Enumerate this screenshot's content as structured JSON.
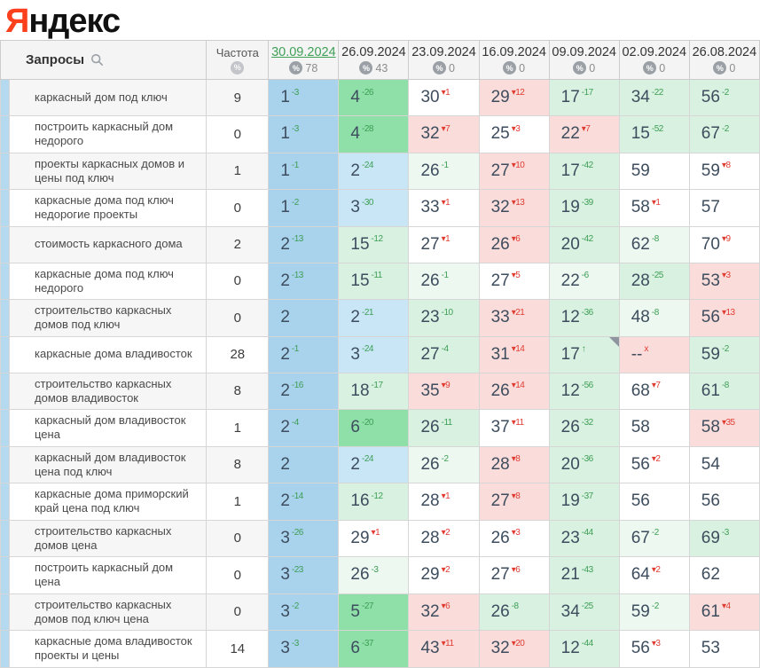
{
  "logo": {
    "first_letter": "Я",
    "rest": "ндекс"
  },
  "palette": {
    "sel": "#a9d2ed",
    "blue": "#c9e6f7",
    "green": "#8edfa8",
    "lgreen": "#d9f1e1",
    "pgreen": "#ecf8f0",
    "pink": "#fadcda",
    "white": "#ffffff",
    "sup_up": "#3c9e53",
    "sup_down": "#e03c31",
    "selected_date": "#3fa057",
    "logo_accent": "#fc3f1d"
  },
  "table": {
    "queries_header": "Запросы",
    "frequency_header": "Частота",
    "columns": [
      {
        "date": "30.09.2024",
        "percent": "78",
        "selected": true
      },
      {
        "date": "26.09.2024",
        "percent": "43",
        "selected": false
      },
      {
        "date": "23.09.2024",
        "percent": "0",
        "selected": false
      },
      {
        "date": "16.09.2024",
        "percent": "0",
        "selected": false
      },
      {
        "date": "09.09.2024",
        "percent": "0",
        "selected": false
      },
      {
        "date": "02.09.2024",
        "percent": "0",
        "selected": false
      },
      {
        "date": "26.08.2024",
        "percent": "0",
        "selected": false
      }
    ],
    "rows": [
      {
        "query": "каркасный дом под ключ",
        "freq": "9",
        "cells": [
          {
            "p": "1",
            "s": "-3",
            "sc": "up",
            "bg": "sel"
          },
          {
            "p": "4",
            "s": "-26",
            "sc": "up",
            "bg": "green"
          },
          {
            "p": "30",
            "s": "▾1",
            "sc": "down",
            "bg": "white"
          },
          {
            "p": "29",
            "s": "▾12",
            "sc": "down",
            "bg": "pink"
          },
          {
            "p": "17",
            "s": "-17",
            "sc": "up",
            "bg": "lgreen"
          },
          {
            "p": "34",
            "s": "-22",
            "sc": "up",
            "bg": "lgreen"
          },
          {
            "p": "56",
            "s": "-2",
            "sc": "up",
            "bg": "lgreen"
          }
        ]
      },
      {
        "query": "построить каркасный дом недорого",
        "freq": "0",
        "cells": [
          {
            "p": "1",
            "s": "-3",
            "sc": "up",
            "bg": "sel"
          },
          {
            "p": "4",
            "s": "-28",
            "sc": "up",
            "bg": "green"
          },
          {
            "p": "32",
            "s": "▾7",
            "sc": "down",
            "bg": "pink"
          },
          {
            "p": "25",
            "s": "▾3",
            "sc": "down",
            "bg": "white"
          },
          {
            "p": "22",
            "s": "▾7",
            "sc": "down",
            "bg": "pink"
          },
          {
            "p": "15",
            "s": "-52",
            "sc": "up",
            "bg": "lgreen"
          },
          {
            "p": "67",
            "s": "-2",
            "sc": "up",
            "bg": "lgreen"
          }
        ]
      },
      {
        "query": "проекты каркасных домов и цены под ключ",
        "freq": "1",
        "cells": [
          {
            "p": "1",
            "s": "-1",
            "sc": "up",
            "bg": "sel"
          },
          {
            "p": "2",
            "s": "-24",
            "sc": "up",
            "bg": "blue"
          },
          {
            "p": "26",
            "s": "-1",
            "sc": "up",
            "bg": "pgreen"
          },
          {
            "p": "27",
            "s": "▾10",
            "sc": "down",
            "bg": "pink"
          },
          {
            "p": "17",
            "s": "-42",
            "sc": "up",
            "bg": "lgreen"
          },
          {
            "p": "59",
            "s": "",
            "sc": "",
            "bg": "white"
          },
          {
            "p": "59",
            "s": "▾8",
            "sc": "down",
            "bg": "white"
          }
        ]
      },
      {
        "query": "каркасные дома под ключ недорогие проекты",
        "freq": "0",
        "cells": [
          {
            "p": "1",
            "s": "-2",
            "sc": "up",
            "bg": "sel"
          },
          {
            "p": "3",
            "s": "-30",
            "sc": "up",
            "bg": "blue"
          },
          {
            "p": "33",
            "s": "▾1",
            "sc": "down",
            "bg": "white"
          },
          {
            "p": "32",
            "s": "▾13",
            "sc": "down",
            "bg": "pink"
          },
          {
            "p": "19",
            "s": "-39",
            "sc": "up",
            "bg": "lgreen"
          },
          {
            "p": "58",
            "s": "▾1",
            "sc": "down",
            "bg": "white"
          },
          {
            "p": "57",
            "s": "",
            "sc": "",
            "bg": "white"
          }
        ]
      },
      {
        "query": "стоимость каркасного дома",
        "freq": "2",
        "cells": [
          {
            "p": "2",
            "s": "-13",
            "sc": "up",
            "bg": "sel"
          },
          {
            "p": "15",
            "s": "-12",
            "sc": "up",
            "bg": "lgreen"
          },
          {
            "p": "27",
            "s": "▾1",
            "sc": "down",
            "bg": "white"
          },
          {
            "p": "26",
            "s": "▾6",
            "sc": "down",
            "bg": "pink"
          },
          {
            "p": "20",
            "s": "-42",
            "sc": "up",
            "bg": "lgreen"
          },
          {
            "p": "62",
            "s": "-8",
            "sc": "up",
            "bg": "pgreen"
          },
          {
            "p": "70",
            "s": "▾9",
            "sc": "down",
            "bg": "white"
          }
        ]
      },
      {
        "query": "каркасные дома под ключ недорого",
        "freq": "0",
        "cells": [
          {
            "p": "2",
            "s": "-13",
            "sc": "up",
            "bg": "sel"
          },
          {
            "p": "15",
            "s": "-11",
            "sc": "up",
            "bg": "lgreen"
          },
          {
            "p": "26",
            "s": "-1",
            "sc": "up",
            "bg": "pgreen"
          },
          {
            "p": "27",
            "s": "▾5",
            "sc": "down",
            "bg": "white"
          },
          {
            "p": "22",
            "s": "-6",
            "sc": "up",
            "bg": "pgreen"
          },
          {
            "p": "28",
            "s": "-25",
            "sc": "up",
            "bg": "lgreen"
          },
          {
            "p": "53",
            "s": "▾3",
            "sc": "down",
            "bg": "pink"
          }
        ]
      },
      {
        "query": "строительство каркасных домов под ключ",
        "freq": "0",
        "cells": [
          {
            "p": "2",
            "s": "",
            "sc": "",
            "bg": "sel"
          },
          {
            "p": "2",
            "s": "-21",
            "sc": "up",
            "bg": "blue"
          },
          {
            "p": "23",
            "s": "-10",
            "sc": "up",
            "bg": "lgreen"
          },
          {
            "p": "33",
            "s": "▾21",
            "sc": "down",
            "bg": "pink"
          },
          {
            "p": "12",
            "s": "-36",
            "sc": "up",
            "bg": "lgreen"
          },
          {
            "p": "48",
            "s": "-8",
            "sc": "up",
            "bg": "pgreen"
          },
          {
            "p": "56",
            "s": "▾13",
            "sc": "down",
            "bg": "pink"
          }
        ]
      },
      {
        "query": "каркасные дома владивосток",
        "freq": "28",
        "cells": [
          {
            "p": "2",
            "s": "-1",
            "sc": "up",
            "bg": "sel"
          },
          {
            "p": "3",
            "s": "-24",
            "sc": "up",
            "bg": "blue"
          },
          {
            "p": "27",
            "s": "-4",
            "sc": "up",
            "bg": "lgreen"
          },
          {
            "p": "31",
            "s": "▾14",
            "sc": "down",
            "bg": "pink"
          },
          {
            "p": "17",
            "s": "↑",
            "sc": "up",
            "bg": "lgreen",
            "note": true
          },
          {
            "p": "--",
            "s": "x",
            "sc": "down",
            "bg": "pink"
          },
          {
            "p": "59",
            "s": "-2",
            "sc": "up",
            "bg": "lgreen"
          }
        ]
      },
      {
        "query": "строительство каркасных домов владивосток",
        "freq": "8",
        "cells": [
          {
            "p": "2",
            "s": "-16",
            "sc": "up",
            "bg": "sel"
          },
          {
            "p": "18",
            "s": "-17",
            "sc": "up",
            "bg": "lgreen"
          },
          {
            "p": "35",
            "s": "▾9",
            "sc": "down",
            "bg": "pink"
          },
          {
            "p": "26",
            "s": "▾14",
            "sc": "down",
            "bg": "pink"
          },
          {
            "p": "12",
            "s": "-56",
            "sc": "up",
            "bg": "lgreen"
          },
          {
            "p": "68",
            "s": "▾7",
            "sc": "down",
            "bg": "white"
          },
          {
            "p": "61",
            "s": "-8",
            "sc": "up",
            "bg": "lgreen"
          }
        ]
      },
      {
        "query": "каркасный дом владивосток цена",
        "freq": "1",
        "cells": [
          {
            "p": "2",
            "s": "-4",
            "sc": "up",
            "bg": "sel"
          },
          {
            "p": "6",
            "s": "-20",
            "sc": "up",
            "bg": "green"
          },
          {
            "p": "26",
            "s": "-11",
            "sc": "up",
            "bg": "lgreen"
          },
          {
            "p": "37",
            "s": "▾11",
            "sc": "down",
            "bg": "white"
          },
          {
            "p": "26",
            "s": "-32",
            "sc": "up",
            "bg": "lgreen"
          },
          {
            "p": "58",
            "s": "",
            "sc": "",
            "bg": "white"
          },
          {
            "p": "58",
            "s": "▾35",
            "sc": "down",
            "bg": "pink"
          }
        ]
      },
      {
        "query": "каркасный дом владивосток цена под ключ",
        "freq": "8",
        "cells": [
          {
            "p": "2",
            "s": "",
            "sc": "",
            "bg": "sel"
          },
          {
            "p": "2",
            "s": "-24",
            "sc": "up",
            "bg": "blue"
          },
          {
            "p": "26",
            "s": "-2",
            "sc": "up",
            "bg": "pgreen"
          },
          {
            "p": "28",
            "s": "▾8",
            "sc": "down",
            "bg": "pink"
          },
          {
            "p": "20",
            "s": "-36",
            "sc": "up",
            "bg": "lgreen"
          },
          {
            "p": "56",
            "s": "▾2",
            "sc": "down",
            "bg": "white"
          },
          {
            "p": "54",
            "s": "",
            "sc": "",
            "bg": "white"
          }
        ]
      },
      {
        "query": "каркасные дома приморский край цена под ключ",
        "freq": "1",
        "cells": [
          {
            "p": "2",
            "s": "-14",
            "sc": "up",
            "bg": "sel"
          },
          {
            "p": "16",
            "s": "-12",
            "sc": "up",
            "bg": "lgreen"
          },
          {
            "p": "28",
            "s": "▾1",
            "sc": "down",
            "bg": "white"
          },
          {
            "p": "27",
            "s": "▾8",
            "sc": "down",
            "bg": "pink"
          },
          {
            "p": "19",
            "s": "-37",
            "sc": "up",
            "bg": "lgreen"
          },
          {
            "p": "56",
            "s": "",
            "sc": "",
            "bg": "white"
          },
          {
            "p": "56",
            "s": "",
            "sc": "",
            "bg": "white"
          }
        ]
      },
      {
        "query": "строительство каркасных домов цена",
        "freq": "0",
        "cells": [
          {
            "p": "3",
            "s": "-26",
            "sc": "up",
            "bg": "sel"
          },
          {
            "p": "29",
            "s": "▾1",
            "sc": "down",
            "bg": "white"
          },
          {
            "p": "28",
            "s": "▾2",
            "sc": "down",
            "bg": "white"
          },
          {
            "p": "26",
            "s": "▾3",
            "sc": "down",
            "bg": "white"
          },
          {
            "p": "23",
            "s": "-44",
            "sc": "up",
            "bg": "lgreen"
          },
          {
            "p": "67",
            "s": "-2",
            "sc": "up",
            "bg": "pgreen"
          },
          {
            "p": "69",
            "s": "-3",
            "sc": "up",
            "bg": "lgreen"
          }
        ]
      },
      {
        "query": "построить каркасный дом цена",
        "freq": "0",
        "cells": [
          {
            "p": "3",
            "s": "-23",
            "sc": "up",
            "bg": "sel"
          },
          {
            "p": "26",
            "s": "-3",
            "sc": "up",
            "bg": "pgreen"
          },
          {
            "p": "29",
            "s": "▾2",
            "sc": "down",
            "bg": "white"
          },
          {
            "p": "27",
            "s": "▾6",
            "sc": "down",
            "bg": "white"
          },
          {
            "p": "21",
            "s": "-43",
            "sc": "up",
            "bg": "lgreen"
          },
          {
            "p": "64",
            "s": "▾2",
            "sc": "down",
            "bg": "white"
          },
          {
            "p": "62",
            "s": "",
            "sc": "",
            "bg": "white"
          }
        ]
      },
      {
        "query": "строительство каркасных домов под ключ цена",
        "freq": "0",
        "cells": [
          {
            "p": "3",
            "s": "-2",
            "sc": "up",
            "bg": "sel"
          },
          {
            "p": "5",
            "s": "-27",
            "sc": "up",
            "bg": "green"
          },
          {
            "p": "32",
            "s": "▾6",
            "sc": "down",
            "bg": "pink"
          },
          {
            "p": "26",
            "s": "-8",
            "sc": "up",
            "bg": "lgreen"
          },
          {
            "p": "34",
            "s": "-25",
            "sc": "up",
            "bg": "lgreen"
          },
          {
            "p": "59",
            "s": "-2",
            "sc": "up",
            "bg": "pgreen"
          },
          {
            "p": "61",
            "s": "▾4",
            "sc": "down",
            "bg": "pink"
          }
        ]
      },
      {
        "query": "каркасные дома владивосток проекты и цены",
        "freq": "14",
        "cells": [
          {
            "p": "3",
            "s": "-3",
            "sc": "up",
            "bg": "sel"
          },
          {
            "p": "6",
            "s": "-37",
            "sc": "up",
            "bg": "green"
          },
          {
            "p": "43",
            "s": "▾11",
            "sc": "down",
            "bg": "pink"
          },
          {
            "p": "32",
            "s": "▾20",
            "sc": "down",
            "bg": "pink"
          },
          {
            "p": "12",
            "s": "-44",
            "sc": "up",
            "bg": "lgreen"
          },
          {
            "p": "56",
            "s": "▾3",
            "sc": "down",
            "bg": "white"
          },
          {
            "p": "53",
            "s": "",
            "sc": "",
            "bg": "white"
          }
        ]
      }
    ]
  }
}
